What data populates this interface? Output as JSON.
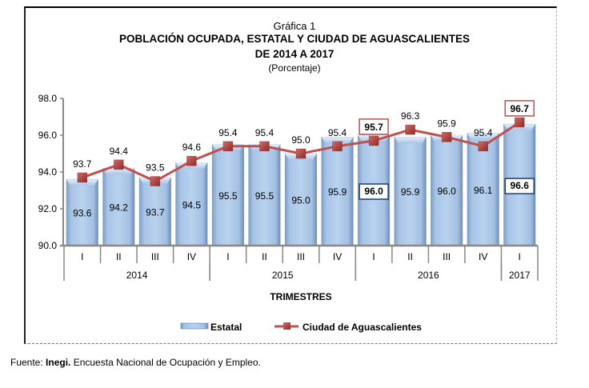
{
  "chart_data": {
    "type": "bar",
    "supertitle": "Gráfica 1",
    "title": "POBLACIÓN OCUPADA,  ESTATAL Y CIUDAD DE AGUASCALIENTES",
    "subtitle": "DE 2014  A 2017",
    "unit_label": "(Porcentaje)",
    "xlabel": "TRIMESTRES",
    "ylabel": "",
    "ylim": [
      90.0,
      98.0
    ],
    "yticks": [
      "90.0",
      "92.0",
      "94.0",
      "96.0",
      "98.0"
    ],
    "ytick_values": [
      90,
      92,
      94,
      96,
      98
    ],
    "categories": [
      "I",
      "II",
      "III",
      "IV",
      "I",
      "II",
      "III",
      "IV",
      "I",
      "II",
      "III",
      "IV",
      "I"
    ],
    "year_groups": [
      {
        "label": "2014",
        "count": 4
      },
      {
        "label": "2015",
        "count": 4
      },
      {
        "label": "2016",
        "count": 4
      },
      {
        "label": "2017",
        "count": 1
      }
    ],
    "series": [
      {
        "name": "Estatal",
        "type": "bar",
        "color": "#a9c6e8",
        "values": [
          93.6,
          94.2,
          93.7,
          94.5,
          95.5,
          95.5,
          95.0,
          95.9,
          96.0,
          95.9,
          96.0,
          96.1,
          96.6
        ],
        "labels": [
          "93.6",
          "94.2",
          "93.7",
          "94.5",
          "95.5",
          "95.5",
          "95.0",
          "95.9",
          "96.0",
          "95.9",
          "96.0",
          "96.1",
          "96.6"
        ],
        "highlighted_indices": [
          8,
          12
        ],
        "highlight_border_color": "#1f3b6e"
      },
      {
        "name": "Ciudad de Aguascalientes",
        "type": "line",
        "color": "#c0504d",
        "marker": "square",
        "values": [
          93.7,
          94.4,
          93.5,
          94.6,
          95.4,
          95.4,
          95.0,
          95.4,
          95.7,
          96.3,
          95.9,
          95.4,
          96.7
        ],
        "labels": [
          "93.7",
          "94.4",
          "93.5",
          "94.6",
          "95.4",
          "95.4",
          "95.0",
          "95.4",
          "95.7",
          "96.3",
          "95.9",
          "95.4",
          "96.7"
        ],
        "highlighted_indices": [
          8,
          12
        ],
        "highlight_border_color": "#c0504d"
      }
    ],
    "legend": {
      "position": "bottom",
      "entries": [
        "Estatal",
        "Ciudad de Aguascalientes"
      ]
    },
    "grid": false
  },
  "source": {
    "prefix": "Fuente: ",
    "org": "Inegi.",
    "text": " Encuesta Nacional de Ocupación y Empleo."
  }
}
